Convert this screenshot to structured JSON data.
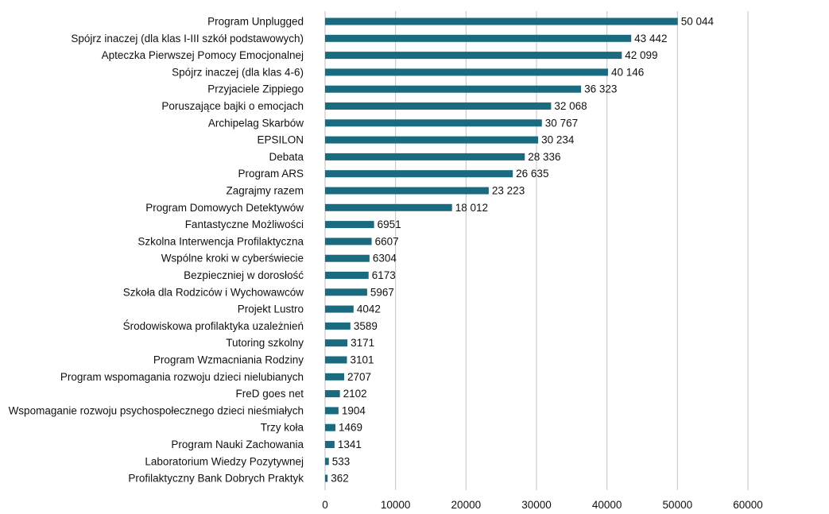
{
  "chart_data": {
    "type": "bar",
    "orientation": "horizontal",
    "categories": [
      "Program Unplugged",
      "Spójrz inaczej (dla klas I-III szkół podstawowych)",
      "Apteczka Pierwszej Pomocy Emocjonalnej",
      "Spójrz inaczej (dla klas 4-6)",
      "Przyjaciele Zippiego",
      "Poruszające bajki o emocjach",
      "Archipelag Skarbów",
      "EPSILON",
      "Debata",
      "Program ARS",
      "Zagrajmy razem",
      "Program Domowych Detektywów",
      "Fantastyczne Możliwości",
      "Szkolna Interwencja Profilaktyczna",
      "Wspólne kroki w cyberświecie",
      "Bezpieczniej w dorosłość",
      "Szkoła dla Rodziców i Wychowawców",
      "Projekt Lustro",
      "Środowiskowa profilaktyka uzależnień",
      "Tutoring szkolny",
      "Program Wzmacniania Rodziny",
      "Program wspomagania rozwoju dzieci nielubianych",
      "FreD goes net",
      "Wspomaganie rozwoju psychospołecznego dzieci nieśmiałych",
      "Trzy koła",
      "Program Nauki Zachowania",
      "Laboratorium Wiedzy Pozytywnej",
      "Profilaktyczny Bank Dobrych Praktyk"
    ],
    "values": [
      50044,
      43442,
      42099,
      40146,
      36323,
      32068,
      30767,
      30234,
      28336,
      26635,
      23223,
      18012,
      6951,
      6607,
      6304,
      6173,
      5967,
      4042,
      3589,
      3171,
      3101,
      2707,
      2102,
      1904,
      1469,
      1341,
      533,
      362
    ],
    "value_labels": [
      "50 044",
      "43 442",
      "42 099",
      "40 146",
      "36 323",
      "32 068",
      "30 767",
      "30 234",
      "28 336",
      "26 635",
      "23 223",
      "18 012",
      "6951",
      "6607",
      "6304",
      "6173",
      "5967",
      "4042",
      "3589",
      "3171",
      "3101",
      "2707",
      "2102",
      "1904",
      "1469",
      "1341",
      "533",
      "362"
    ],
    "xlim": [
      0,
      60000
    ],
    "x_ticks": [
      0,
      10000,
      20000,
      30000,
      40000,
      50000,
      60000
    ],
    "x_tick_labels": [
      "0",
      "10000",
      "20000",
      "30000",
      "40000",
      "50000",
      "60000"
    ],
    "grid": "vertical",
    "legend": "none",
    "bar_color": "#1a6a80"
  }
}
